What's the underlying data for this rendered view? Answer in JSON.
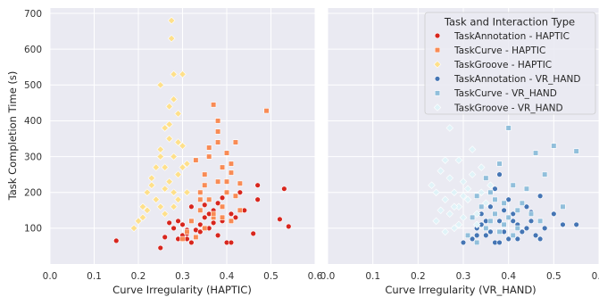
{
  "chart_data": {
    "type": "scatter",
    "ylabel": "Task Completion Time (s)",
    "ylim": [
      0,
      715
    ],
    "yticks": [
      100,
      200,
      300,
      400,
      500,
      600,
      700
    ],
    "xlim": [
      0.0,
      0.6
    ],
    "xticks": [
      "0.0",
      "0.1",
      "0.2",
      "0.3",
      "0.4",
      "0.5",
      "0.6"
    ],
    "grid": true,
    "legend": {
      "title": "Task and Interaction Type",
      "placement": "top-right of right panel",
      "entries": [
        {
          "label": "TaskAnnotation - HAPTIC",
          "color": "#d7261e",
          "marker": "circle"
        },
        {
          "label": "TaskCurve - HAPTIC",
          "color": "#f88b55",
          "marker": "square"
        },
        {
          "label": "TaskGroove - HAPTIC",
          "color": "#fee08b",
          "marker": "diamond"
        },
        {
          "label": "TaskAnnotation - VR_HAND",
          "color": "#4575b4",
          "marker": "circle"
        },
        {
          "label": "TaskCurve - VR_HAND",
          "color": "#91bfdb",
          "marker": "square"
        },
        {
          "label": "TaskGroove - VR_HAND",
          "color": "#e0f3f8",
          "marker": "diamond"
        }
      ]
    },
    "panels": [
      {
        "xlabel": "Curve Irregularity (HAPTIC)",
        "series": [
          {
            "name": "TaskAnnotation - HAPTIC",
            "color": "#d7261e",
            "marker": "circle",
            "points": [
              [
                0.15,
                65
              ],
              [
                0.25,
                45
              ],
              [
                0.26,
                75
              ],
              [
                0.28,
                100
              ],
              [
                0.29,
                120
              ],
              [
                0.3,
                80
              ],
              [
                0.31,
                70
              ],
              [
                0.31,
                95
              ],
              [
                0.32,
                160
              ],
              [
                0.32,
                60
              ],
              [
                0.33,
                75
              ],
              [
                0.34,
                110
              ],
              [
                0.35,
                130
              ],
              [
                0.36,
                100
              ],
              [
                0.37,
                150
              ],
              [
                0.38,
                80
              ],
              [
                0.38,
                170
              ],
              [
                0.39,
                120
              ],
              [
                0.4,
                60
              ],
              [
                0.41,
                140
              ],
              [
                0.42,
                130
              ],
              [
                0.46,
                85
              ],
              [
                0.47,
                180
              ],
              [
                0.47,
                220
              ],
              [
                0.52,
                125
              ],
              [
                0.53,
                210
              ],
              [
                0.54,
                105
              ],
              [
                0.3,
                110
              ],
              [
                0.33,
                95
              ],
              [
                0.36,
                140
              ],
              [
                0.39,
                185
              ],
              [
                0.41,
                60
              ],
              [
                0.27,
                115
              ],
              [
                0.31,
                85
              ],
              [
                0.35,
                165
              ],
              [
                0.37,
                115
              ],
              [
                0.43,
                200
              ],
              [
                0.44,
                150
              ],
              [
                0.34,
                90
              ],
              [
                0.29,
                70
              ]
            ]
          },
          {
            "name": "TaskCurve - HAPTIC",
            "color": "#f88b55",
            "marker": "square",
            "points": [
              [
                0.3,
                70
              ],
              [
                0.31,
                90
              ],
              [
                0.32,
                120
              ],
              [
                0.33,
                75
              ],
              [
                0.34,
                150
              ],
              [
                0.34,
                200
              ],
              [
                0.35,
                100
              ],
              [
                0.35,
                250
              ],
              [
                0.36,
                180
              ],
              [
                0.36,
                300
              ],
              [
                0.37,
                130
              ],
              [
                0.37,
                445
              ],
              [
                0.38,
                230
              ],
              [
                0.38,
                340
              ],
              [
                0.38,
                370
              ],
              [
                0.39,
                160
              ],
              [
                0.39,
                270
              ],
              [
                0.4,
                200
              ],
              [
                0.4,
                310
              ],
              [
                0.41,
                255
              ],
              [
                0.41,
                120
              ],
              [
                0.42,
                190
              ],
              [
                0.42,
                340
              ],
              [
                0.43,
                150
              ],
              [
                0.43,
                225
              ],
              [
                0.49,
                428
              ],
              [
                0.33,
                290
              ],
              [
                0.36,
                325
              ],
              [
                0.38,
                400
              ],
              [
                0.4,
                230
              ],
              [
                0.37,
                140
              ],
              [
                0.35,
                220
              ],
              [
                0.34,
                180
              ],
              [
                0.39,
                130
              ],
              [
                0.41,
                280
              ]
            ]
          },
          {
            "name": "TaskGroove - HAPTIC",
            "color": "#fee08b",
            "marker": "diamond",
            "points": [
              [
                0.19,
                100
              ],
              [
                0.2,
                120
              ],
              [
                0.21,
                160
              ],
              [
                0.22,
                200
              ],
              [
                0.23,
                240
              ],
              [
                0.24,
                180
              ],
              [
                0.25,
                320
              ],
              [
                0.25,
                500
              ],
              [
                0.26,
                270
              ],
              [
                0.26,
                380
              ],
              [
                0.27,
                230
              ],
              [
                0.27,
                440
              ],
              [
                0.275,
                630
              ],
              [
                0.275,
                680
              ],
              [
                0.28,
                160
              ],
              [
                0.28,
                300
              ],
              [
                0.28,
                530
              ],
              [
                0.29,
                250
              ],
              [
                0.29,
                420
              ],
              [
                0.3,
                330
              ],
              [
                0.3,
                530
              ],
              [
                0.31,
                200
              ],
              [
                0.31,
                280
              ],
              [
                0.22,
                150
              ],
              [
                0.24,
                270
              ],
              [
                0.26,
                140
              ],
              [
                0.27,
                350
              ],
              [
                0.28,
                200
              ],
              [
                0.29,
                180
              ],
              [
                0.3,
                270
              ],
              [
                0.23,
                220
              ],
              [
                0.25,
                300
              ],
              [
                0.27,
                390
              ],
              [
                0.21,
                130
              ],
              [
                0.26,
                210
              ],
              [
                0.28,
                460
              ],
              [
                0.29,
                340
              ],
              [
                0.25,
                160
              ]
            ]
          }
        ]
      },
      {
        "xlabel": "Curve Irregularity (VR_HAND)",
        "series": [
          {
            "name": "TaskAnnotation - VR_HAND",
            "color": "#4575b4",
            "marker": "circle",
            "points": [
              [
                0.3,
                60
              ],
              [
                0.32,
                70
              ],
              [
                0.33,
                100
              ],
              [
                0.34,
                140
              ],
              [
                0.35,
                80
              ],
              [
                0.36,
                160
              ],
              [
                0.37,
                210
              ],
              [
                0.37,
                60
              ],
              [
                0.38,
                120
              ],
              [
                0.38,
                250
              ],
              [
                0.39,
                90
              ],
              [
                0.4,
                180
              ],
              [
                0.4,
                70
              ],
              [
                0.41,
                140
              ],
              [
                0.42,
                110
              ],
              [
                0.43,
                90
              ],
              [
                0.44,
                160
              ],
              [
                0.45,
                120
              ],
              [
                0.46,
                80
              ],
              [
                0.47,
                190
              ],
              [
                0.48,
                100
              ],
              [
                0.5,
                140
              ],
              [
                0.52,
                110
              ],
              [
                0.55,
                110
              ],
              [
                0.35,
                120
              ],
              [
                0.36,
                90
              ],
              [
                0.39,
                150
              ],
              [
                0.42,
                70
              ],
              [
                0.44,
                100
              ],
              [
                0.33,
                80
              ],
              [
                0.41,
                120
              ],
              [
                0.38,
                60
              ],
              [
                0.34,
                110
              ],
              [
                0.45,
                145
              ],
              [
                0.47,
                70
              ]
            ]
          },
          {
            "name": "TaskCurve - VR_HAND",
            "color": "#91bfdb",
            "marker": "square",
            "points": [
              [
                0.31,
                80
              ],
              [
                0.32,
                130
              ],
              [
                0.33,
                60
              ],
              [
                0.34,
                160
              ],
              [
                0.35,
                100
              ],
              [
                0.36,
                200
              ],
              [
                0.37,
                140
              ],
              [
                0.38,
                280
              ],
              [
                0.38,
                90
              ],
              [
                0.39,
                170
              ],
              [
                0.4,
                380
              ],
              [
                0.4,
                130
              ],
              [
                0.41,
                220
              ],
              [
                0.42,
                100
              ],
              [
                0.43,
                170
              ],
              [
                0.45,
                140
              ],
              [
                0.46,
                310
              ],
              [
                0.48,
                250
              ],
              [
                0.5,
                330
              ],
              [
                0.52,
                160
              ],
              [
                0.55,
                315
              ],
              [
                0.35,
                240
              ],
              [
                0.37,
                180
              ],
              [
                0.39,
                110
              ],
              [
                0.41,
                80
              ],
              [
                0.44,
                210
              ],
              [
                0.36,
                120
              ],
              [
                0.33,
                190
              ],
              [
                0.42,
                150
              ],
              [
                0.47,
                120
              ]
            ]
          },
          {
            "name": "TaskGroove - VR_HAND",
            "color": "#e0f3f8",
            "marker": "diamond",
            "points": [
              [
                0.23,
                220
              ],
              [
                0.24,
                120
              ],
              [
                0.25,
                150
              ],
              [
                0.26,
                180
              ],
              [
                0.26,
                290
              ],
              [
                0.27,
                380
              ],
              [
                0.27,
                240
              ],
              [
                0.28,
                100
              ],
              [
                0.28,
                200
              ],
              [
                0.29,
                160
              ],
              [
                0.29,
                290
              ],
              [
                0.3,
                130
              ],
              [
                0.3,
                230
              ],
              [
                0.31,
                180
              ],
              [
                0.32,
                250
              ],
              [
                0.32,
                320
              ],
              [
                0.33,
                140
              ],
              [
                0.34,
                200
              ],
              [
                0.34,
                270
              ],
              [
                0.35,
                170
              ],
              [
                0.24,
                200
              ],
              [
                0.25,
                260
              ],
              [
                0.27,
                140
              ],
              [
                0.28,
                160
              ],
              [
                0.29,
                110
              ],
              [
                0.31,
                210
              ],
              [
                0.33,
                110
              ],
              [
                0.26,
                90
              ],
              [
                0.3,
                190
              ],
              [
                0.36,
                220
              ]
            ]
          }
        ]
      }
    ]
  }
}
